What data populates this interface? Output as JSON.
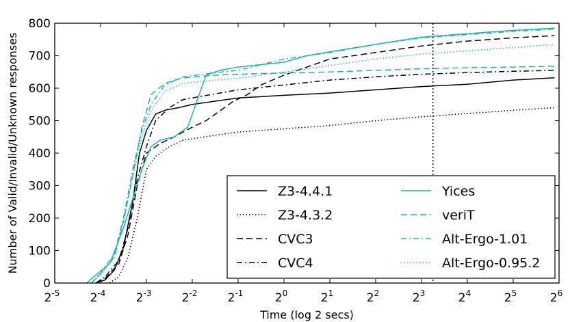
{
  "chart_data": {
    "type": "line",
    "title": "",
    "xlabel": "Time (log 2 secs)",
    "ylabel": "Number of Valid/Invalid/Unknown responses",
    "x_scale": "log2",
    "xlim_log2": [
      -5,
      6
    ],
    "ylim": [
      0,
      800
    ],
    "x_ticks": [
      {
        "base": "2",
        "exp": "-5",
        "v": -5
      },
      {
        "base": "2",
        "exp": "-4",
        "v": -4
      },
      {
        "base": "2",
        "exp": "-3",
        "v": -3
      },
      {
        "base": "2",
        "exp": "-2",
        "v": -2
      },
      {
        "base": "2",
        "exp": "-1",
        "v": -1
      },
      {
        "base": "2",
        "exp": "0",
        "v": 0
      },
      {
        "base": "2",
        "exp": "1",
        "v": 1
      },
      {
        "base": "2",
        "exp": "2",
        "v": 2
      },
      {
        "base": "2",
        "exp": "3",
        "v": 3
      },
      {
        "base": "2",
        "exp": "4",
        "v": 4
      },
      {
        "base": "2",
        "exp": "5",
        "v": 5
      },
      {
        "base": "2",
        "exp": "6",
        "v": 6
      }
    ],
    "y_ticks": [
      "0",
      "100",
      "200",
      "300",
      "400",
      "500",
      "600",
      "700",
      "800"
    ],
    "reference_line_x_log2": 3.25,
    "legend_position": "lower-right",
    "grid": false,
    "series": [
      {
        "name": "Z3-4.4.1",
        "color": "#000000",
        "dash": "solid",
        "points": [
          [
            -4.1,
            0
          ],
          [
            -3.9,
            10
          ],
          [
            -3.7,
            40
          ],
          [
            -3.5,
            110
          ],
          [
            -3.3,
            250
          ],
          [
            -3.15,
            400
          ],
          [
            -3.0,
            470
          ],
          [
            -2.8,
            520
          ],
          [
            -2.6,
            532
          ],
          [
            -2.3,
            540
          ],
          [
            -2.0,
            550
          ],
          [
            -1.5,
            560
          ],
          [
            -1.0,
            570
          ],
          [
            0,
            578
          ],
          [
            1,
            585
          ],
          [
            2,
            595
          ],
          [
            3,
            605
          ],
          [
            4,
            612
          ],
          [
            5,
            625
          ],
          [
            5.9,
            632
          ]
        ]
      },
      {
        "name": "Z3-4.3.2",
        "color": "#000000",
        "dash": "dotted",
        "points": [
          [
            -3.8,
            0
          ],
          [
            -3.6,
            20
          ],
          [
            -3.4,
            80
          ],
          [
            -3.2,
            200
          ],
          [
            -3.0,
            350
          ],
          [
            -2.8,
            390
          ],
          [
            -2.5,
            420
          ],
          [
            -2.2,
            440
          ],
          [
            -1.5,
            455
          ],
          [
            -1.0,
            465
          ],
          [
            0,
            475
          ],
          [
            1,
            485
          ],
          [
            2,
            500
          ],
          [
            3,
            512
          ],
          [
            4,
            522
          ],
          [
            5,
            532
          ],
          [
            5.9,
            540
          ]
        ]
      },
      {
        "name": "CVC3",
        "color": "#000000",
        "dash": "dashed",
        "points": [
          [
            -4.1,
            0
          ],
          [
            -3.9,
            15
          ],
          [
            -3.6,
            60
          ],
          [
            -3.4,
            150
          ],
          [
            -3.2,
            300
          ],
          [
            -3.0,
            400
          ],
          [
            -2.7,
            430
          ],
          [
            -2.4,
            450
          ],
          [
            -2.0,
            480
          ],
          [
            -1.7,
            500
          ],
          [
            -1.4,
            530
          ],
          [
            -1.1,
            560
          ],
          [
            -0.8,
            580
          ],
          [
            -0.5,
            610
          ],
          [
            0,
            640
          ],
          [
            0.5,
            665
          ],
          [
            1,
            690
          ],
          [
            2,
            710
          ],
          [
            3,
            730
          ],
          [
            4,
            745
          ],
          [
            5,
            755
          ],
          [
            5.9,
            762
          ]
        ]
      },
      {
        "name": "CVC4",
        "color": "#000000",
        "dash": "dashdot",
        "points": [
          [
            -4.1,
            0
          ],
          [
            -3.9,
            20
          ],
          [
            -3.6,
            70
          ],
          [
            -3.4,
            170
          ],
          [
            -3.2,
            320
          ],
          [
            -3.0,
            420
          ],
          [
            -2.8,
            500
          ],
          [
            -2.5,
            540
          ],
          [
            -2.2,
            565
          ],
          [
            -1.6,
            580
          ],
          [
            -1.0,
            595
          ],
          [
            0,
            610
          ],
          [
            1,
            625
          ],
          [
            2,
            635
          ],
          [
            3,
            643
          ],
          [
            4,
            648
          ],
          [
            5,
            652
          ],
          [
            5.9,
            655
          ]
        ]
      },
      {
        "name": "Yices",
        "color": "#20b2b2",
        "dash": "solid",
        "points": [
          [
            -4.3,
            0
          ],
          [
            -4.1,
            25
          ],
          [
            -3.8,
            60
          ],
          [
            -3.5,
            170
          ],
          [
            -3.3,
            260
          ],
          [
            -3.1,
            350
          ],
          [
            -2.9,
            420
          ],
          [
            -2.7,
            440
          ],
          [
            -2.4,
            450
          ],
          [
            -2.1,
            480
          ],
          [
            -1.9,
            560
          ],
          [
            -1.7,
            640
          ],
          [
            -1.4,
            655
          ],
          [
            -1.0,
            665
          ],
          [
            0,
            680
          ],
          [
            0.5,
            700
          ],
          [
            1,
            712
          ],
          [
            2,
            735
          ],
          [
            3,
            757
          ],
          [
            4,
            768
          ],
          [
            5,
            778
          ],
          [
            5.9,
            785
          ]
        ]
      },
      {
        "name": "veriT",
        "color": "#20b2b2",
        "dash": "dashed",
        "points": [
          [
            -4.2,
            0
          ],
          [
            -4.0,
            30
          ],
          [
            -3.7,
            80
          ],
          [
            -3.5,
            190
          ],
          [
            -3.3,
            330
          ],
          [
            -3.1,
            480
          ],
          [
            -2.9,
            580
          ],
          [
            -2.6,
            615
          ],
          [
            -2.2,
            632
          ],
          [
            -1.5,
            640
          ],
          [
            -0.5,
            645
          ],
          [
            0,
            647
          ],
          [
            1,
            650
          ],
          [
            2,
            655
          ],
          [
            3,
            660
          ],
          [
            4,
            663
          ],
          [
            5,
            665
          ],
          [
            5.9,
            668
          ]
        ]
      },
      {
        "name": "Alt-Ergo-1.01",
        "color": "#20b2b2",
        "dash": "dashdot",
        "points": [
          [
            -4.2,
            0
          ],
          [
            -4.0,
            30
          ],
          [
            -3.7,
            90
          ],
          [
            -3.5,
            200
          ],
          [
            -3.3,
            350
          ],
          [
            -3.1,
            470
          ],
          [
            -2.9,
            550
          ],
          [
            -2.6,
            610
          ],
          [
            -2.2,
            635
          ],
          [
            -1.5,
            648
          ],
          [
            -1.0,
            655
          ],
          [
            0,
            690
          ],
          [
            1,
            710
          ],
          [
            2,
            735
          ],
          [
            3,
            755
          ],
          [
            4,
            765
          ],
          [
            5,
            775
          ],
          [
            5.9,
            782
          ]
        ]
      },
      {
        "name": "Alt-Ergo-0.95.2",
        "color": "#20b2b2",
        "dash": "dotted",
        "points": [
          [
            -4.2,
            0
          ],
          [
            -4.0,
            25
          ],
          [
            -3.7,
            80
          ],
          [
            -3.5,
            190
          ],
          [
            -3.3,
            330
          ],
          [
            -3.1,
            450
          ],
          [
            -2.9,
            530
          ],
          [
            -2.6,
            590
          ],
          [
            -2.2,
            615
          ],
          [
            -1.5,
            625
          ],
          [
            -1.0,
            630
          ],
          [
            0,
            650
          ],
          [
            1,
            670
          ],
          [
            2,
            690
          ],
          [
            3,
            705
          ],
          [
            4,
            715
          ],
          [
            5,
            725
          ],
          [
            5.9,
            735
          ]
        ]
      }
    ]
  }
}
